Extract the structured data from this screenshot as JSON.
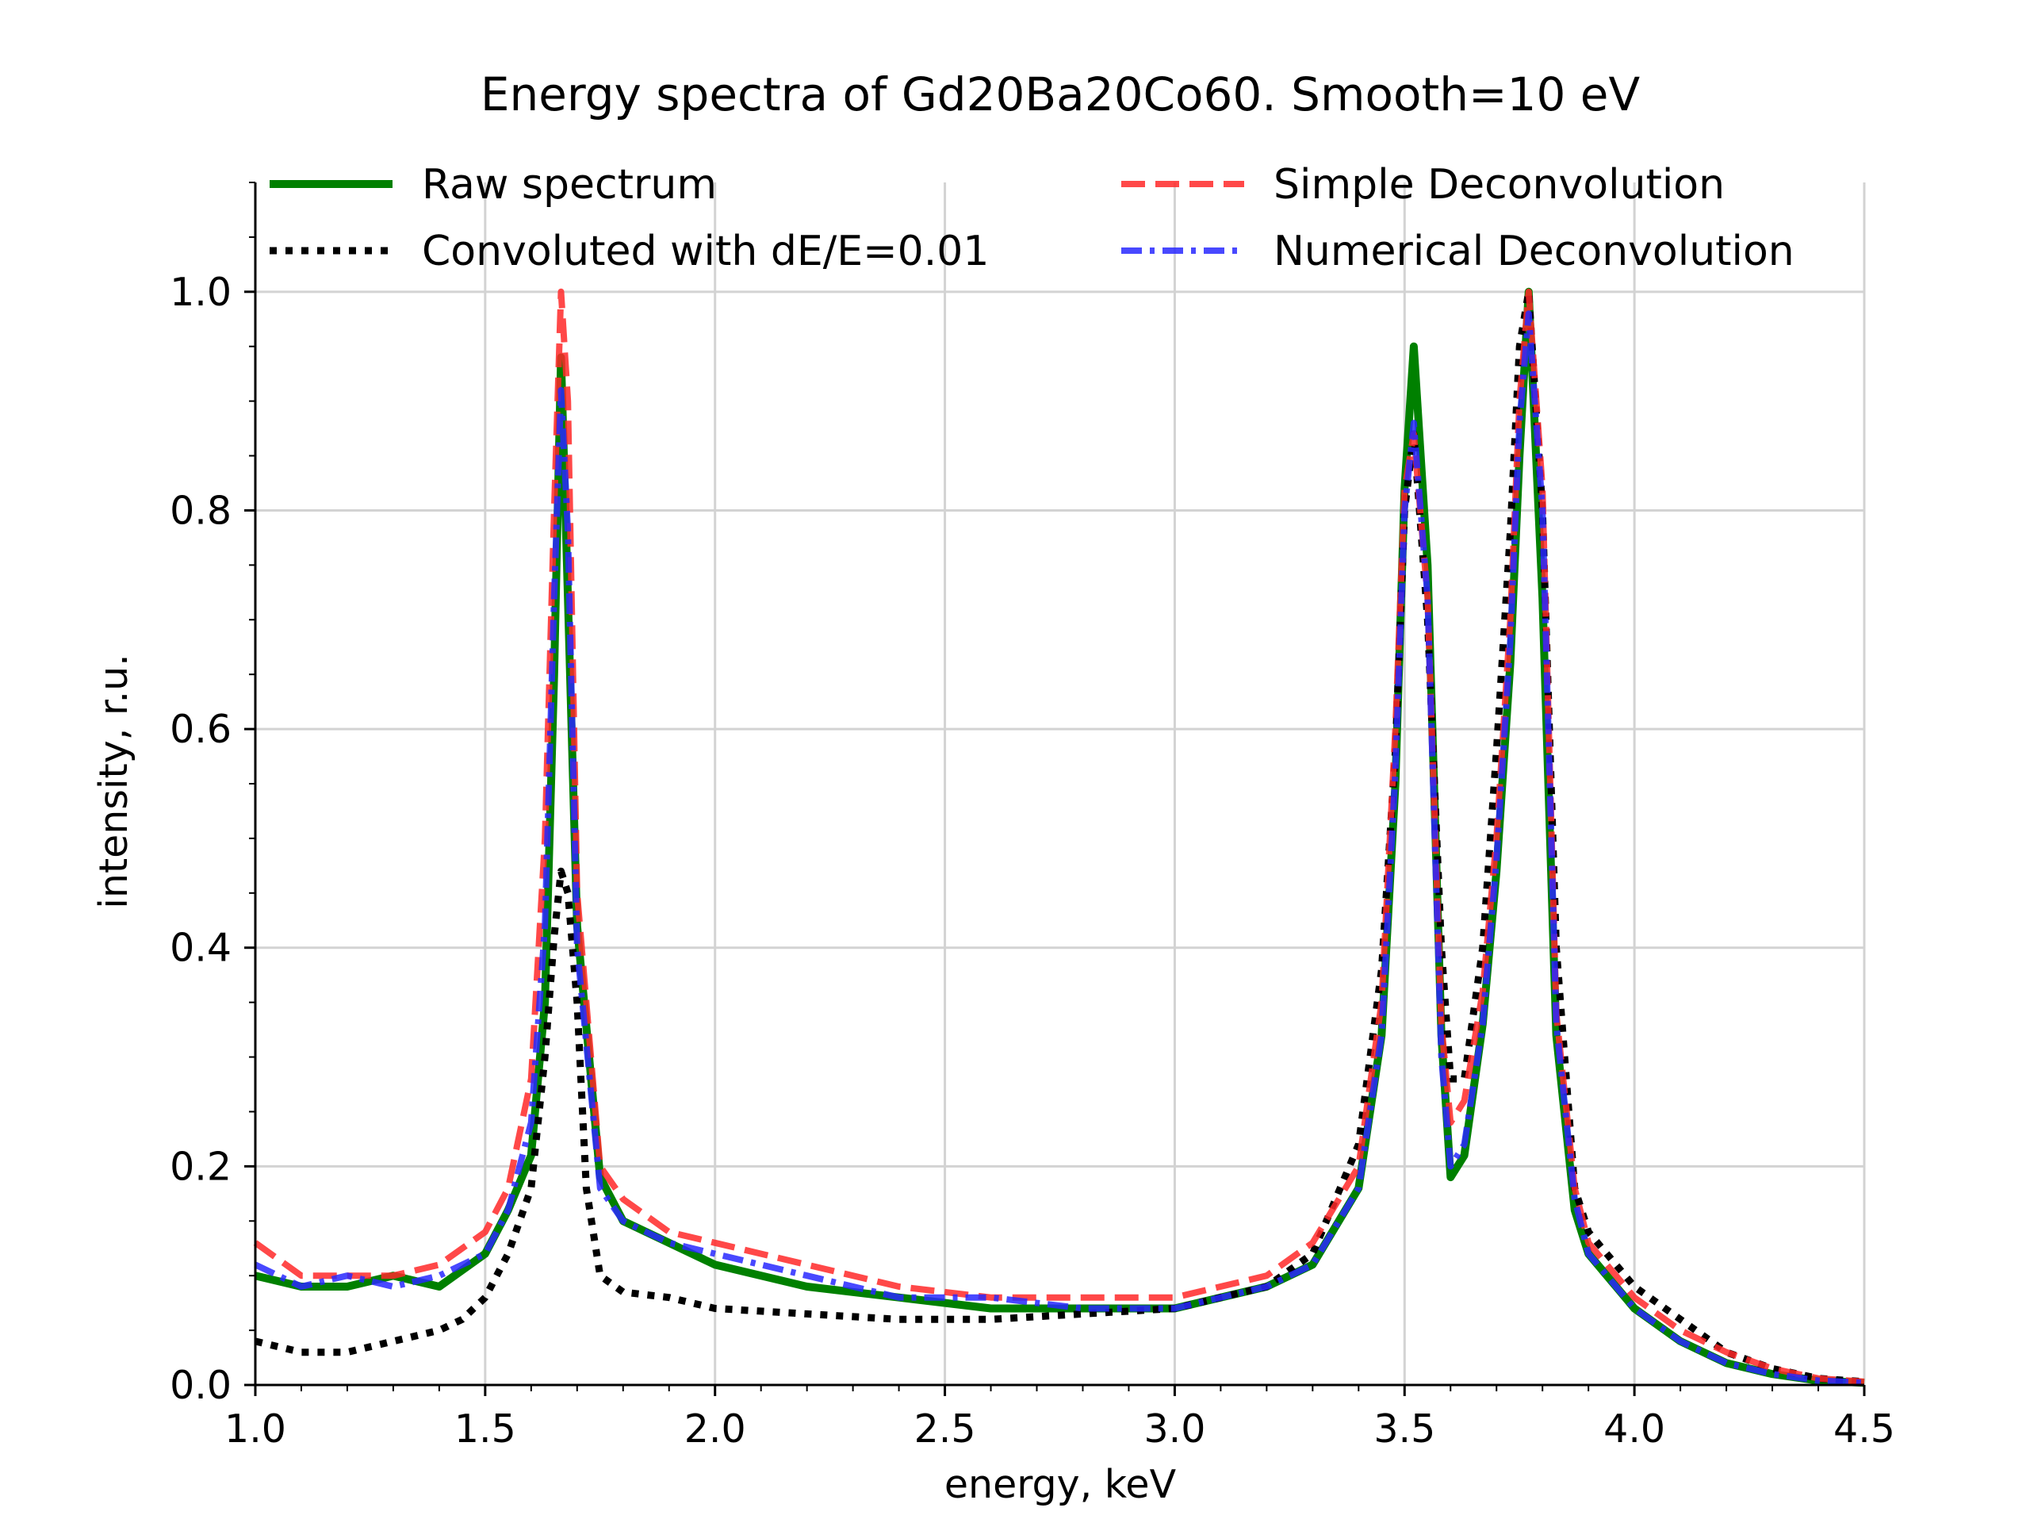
{
  "chart_data": {
    "type": "line",
    "title": "Energy spectra of Gd20Ba20Co60. Smooth=10 eV",
    "xlabel": "energy, keV",
    "ylabel": "intensity, r.u.",
    "xlim": [
      1.0,
      4.5
    ],
    "ylim": [
      0.0,
      1.1
    ],
    "x_ticks": [
      "1.0",
      "1.5",
      "2.0",
      "2.5",
      "3.0",
      "3.5",
      "4.0",
      "4.5"
    ],
    "y_ticks": [
      "0.0",
      "0.2",
      "0.4",
      "0.6",
      "0.8",
      "1.0"
    ],
    "grid": true,
    "legend_position": "top",
    "series": [
      {
        "name": "Raw spectrum",
        "color": "#008000",
        "style": "solid",
        "x": [
          1.0,
          1.1,
          1.2,
          1.3,
          1.4,
          1.5,
          1.55,
          1.6,
          1.63,
          1.65,
          1.665,
          1.68,
          1.7,
          1.75,
          1.8,
          1.9,
          2.0,
          2.2,
          2.4,
          2.6,
          2.8,
          3.0,
          3.2,
          3.3,
          3.4,
          3.45,
          3.48,
          3.5,
          3.52,
          3.55,
          3.58,
          3.6,
          3.63,
          3.67,
          3.7,
          3.73,
          3.75,
          3.77,
          3.8,
          3.83,
          3.87,
          3.9,
          4.0,
          4.1,
          4.2,
          4.3,
          4.4,
          4.5
        ],
        "values": [
          0.1,
          0.09,
          0.09,
          0.1,
          0.09,
          0.12,
          0.16,
          0.21,
          0.35,
          0.65,
          0.94,
          0.72,
          0.42,
          0.19,
          0.15,
          0.13,
          0.11,
          0.09,
          0.08,
          0.07,
          0.07,
          0.07,
          0.09,
          0.11,
          0.18,
          0.32,
          0.55,
          0.82,
          0.95,
          0.75,
          0.32,
          0.19,
          0.21,
          0.33,
          0.47,
          0.66,
          0.85,
          1.0,
          0.72,
          0.32,
          0.16,
          0.12,
          0.07,
          0.04,
          0.02,
          0.01,
          0.004,
          0.002
        ]
      },
      {
        "name": "Convoluted with dE/E=0.01",
        "color": "#000000",
        "style": "dotted",
        "x": [
          1.0,
          1.1,
          1.2,
          1.3,
          1.4,
          1.45,
          1.5,
          1.55,
          1.6,
          1.63,
          1.65,
          1.665,
          1.68,
          1.7,
          1.72,
          1.75,
          1.8,
          1.9,
          2.0,
          2.2,
          2.4,
          2.6,
          2.8,
          3.0,
          3.2,
          3.3,
          3.4,
          3.45,
          3.48,
          3.5,
          3.52,
          3.55,
          3.58,
          3.6,
          3.63,
          3.67,
          3.7,
          3.73,
          3.75,
          3.77,
          3.8,
          3.83,
          3.87,
          3.9,
          4.0,
          4.1,
          4.2,
          4.3,
          4.4,
          4.5
        ],
        "values": [
          0.04,
          0.03,
          0.03,
          0.04,
          0.05,
          0.06,
          0.08,
          0.12,
          0.18,
          0.3,
          0.41,
          0.47,
          0.45,
          0.35,
          0.18,
          0.1,
          0.085,
          0.08,
          0.07,
          0.065,
          0.06,
          0.06,
          0.065,
          0.07,
          0.09,
          0.12,
          0.22,
          0.38,
          0.58,
          0.8,
          0.87,
          0.7,
          0.4,
          0.28,
          0.28,
          0.4,
          0.58,
          0.78,
          0.95,
          1.0,
          0.8,
          0.4,
          0.18,
          0.14,
          0.09,
          0.06,
          0.03,
          0.015,
          0.006,
          0.003
        ]
      },
      {
        "name": "Simple Deconvolution",
        "color": "#ff2828",
        "style": "dashed",
        "x": [
          1.0,
          1.1,
          1.2,
          1.3,
          1.4,
          1.5,
          1.55,
          1.6,
          1.63,
          1.65,
          1.665,
          1.68,
          1.7,
          1.75,
          1.8,
          1.9,
          2.0,
          2.2,
          2.4,
          2.6,
          2.8,
          3.0,
          3.2,
          3.3,
          3.4,
          3.45,
          3.48,
          3.5,
          3.52,
          3.55,
          3.58,
          3.6,
          3.63,
          3.67,
          3.7,
          3.73,
          3.75,
          3.77,
          3.8,
          3.83,
          3.87,
          3.9,
          4.0,
          4.1,
          4.2,
          4.3,
          4.4,
          4.5
        ],
        "values": [
          0.13,
          0.1,
          0.1,
          0.1,
          0.11,
          0.14,
          0.18,
          0.28,
          0.5,
          0.8,
          1.0,
          0.9,
          0.45,
          0.2,
          0.17,
          0.14,
          0.13,
          0.11,
          0.09,
          0.08,
          0.08,
          0.08,
          0.1,
          0.13,
          0.2,
          0.35,
          0.6,
          0.82,
          0.87,
          0.72,
          0.33,
          0.24,
          0.26,
          0.36,
          0.5,
          0.7,
          0.9,
          1.0,
          0.82,
          0.34,
          0.18,
          0.13,
          0.08,
          0.05,
          0.03,
          0.015,
          0.006,
          0.003
        ]
      },
      {
        "name": "Numerical Deconvolution",
        "color": "#2828ff",
        "style": "dashdot",
        "x": [
          1.0,
          1.1,
          1.2,
          1.3,
          1.4,
          1.5,
          1.55,
          1.6,
          1.63,
          1.65,
          1.665,
          1.68,
          1.7,
          1.75,
          1.8,
          1.9,
          2.0,
          2.2,
          2.4,
          2.6,
          2.8,
          3.0,
          3.2,
          3.3,
          3.4,
          3.45,
          3.48,
          3.5,
          3.52,
          3.55,
          3.58,
          3.6,
          3.63,
          3.67,
          3.7,
          3.73,
          3.75,
          3.77,
          3.8,
          3.83,
          3.87,
          3.9,
          4.0,
          4.1,
          4.2,
          4.3,
          4.4,
          4.5
        ],
        "values": [
          0.11,
          0.09,
          0.1,
          0.09,
          0.1,
          0.12,
          0.16,
          0.24,
          0.42,
          0.72,
          0.91,
          0.78,
          0.4,
          0.18,
          0.15,
          0.13,
          0.12,
          0.1,
          0.08,
          0.08,
          0.07,
          0.07,
          0.09,
          0.11,
          0.18,
          0.32,
          0.56,
          0.8,
          0.88,
          0.72,
          0.3,
          0.2,
          0.22,
          0.33,
          0.48,
          0.68,
          0.88,
          0.98,
          0.8,
          0.33,
          0.17,
          0.12,
          0.07,
          0.04,
          0.02,
          0.01,
          0.004,
          0.002
        ]
      }
    ]
  }
}
